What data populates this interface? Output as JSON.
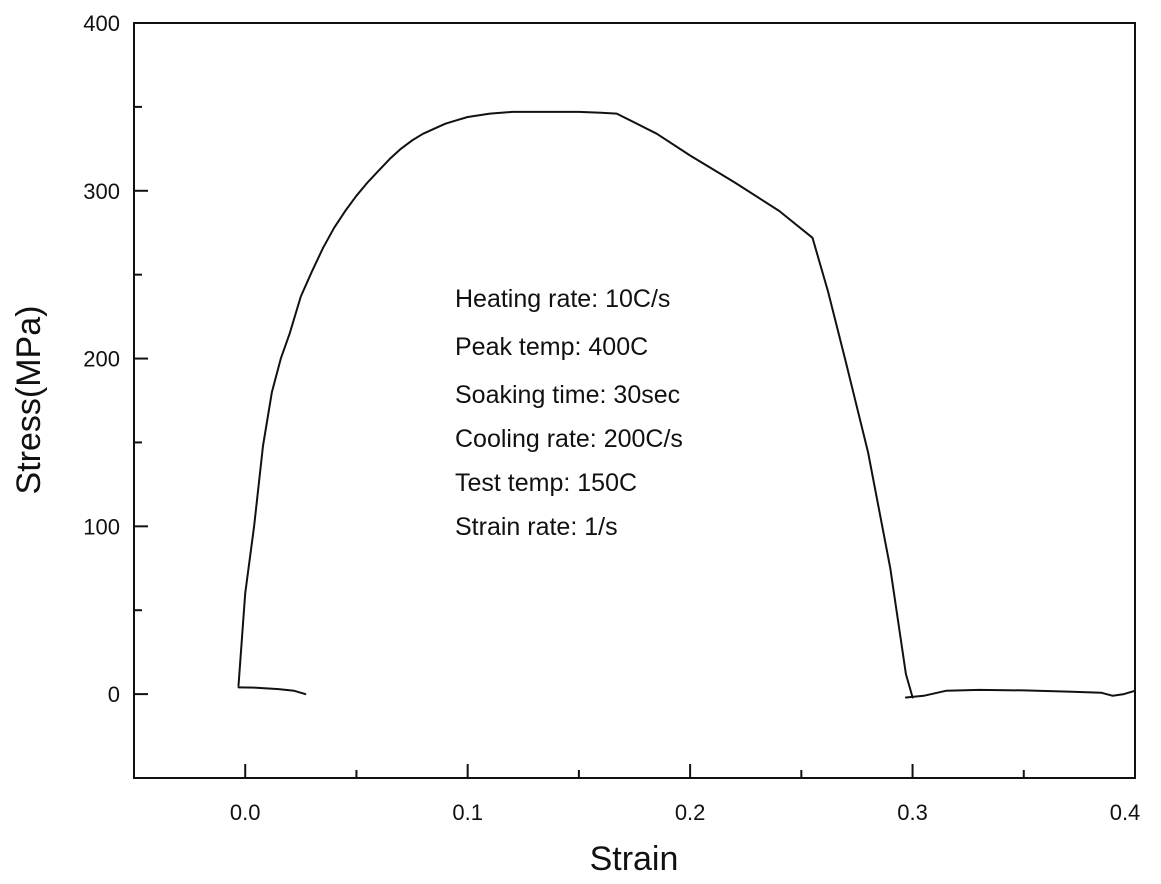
{
  "chart_data": {
    "type": "line",
    "title": "",
    "xlabel": "Strain",
    "ylabel": "Stress(MPa)",
    "xlim": [
      -0.05,
      0.4
    ],
    "ylim": [
      -50,
      400
    ],
    "x_major_ticks": [
      0.0,
      0.1,
      0.2,
      0.3,
      0.4
    ],
    "x_tick_labels": [
      "0.0",
      "0.1",
      "0.2",
      "0.3",
      "0.4"
    ],
    "x_minor_ticks": [
      -0.05,
      0.05,
      0.15,
      0.25,
      0.35
    ],
    "y_major_ticks": [
      0,
      100,
      200,
      300,
      400
    ],
    "y_tick_labels": [
      "0",
      "100",
      "200",
      "300",
      "400"
    ],
    "y_minor_ticks": [
      -50,
      50,
      150,
      250,
      350
    ],
    "grid": false,
    "legend": "none",
    "line_color": "#111111",
    "series": [
      {
        "x": [
          -0.003,
          0.0,
          0.004,
          0.008,
          0.012,
          0.016,
          0.02,
          0.025,
          0.03,
          0.035,
          0.04,
          0.045,
          0.05,
          0.055,
          0.06,
          0.065,
          0.07,
          0.075,
          0.08,
          0.085,
          0.09,
          0.095,
          0.1,
          0.11,
          0.12,
          0.13,
          0.14,
          0.15,
          0.16,
          0.167,
          0.185,
          0.2,
          0.22,
          0.24,
          0.255,
          0.262,
          0.27,
          0.28,
          0.29,
          0.297,
          0.3
        ],
        "y": [
          5,
          60,
          100,
          148,
          180,
          200,
          215,
          237,
          252,
          266,
          278,
          288,
          297,
          305,
          312,
          319,
          325,
          330,
          334,
          337,
          340,
          342,
          344,
          346,
          347,
          347,
          347,
          347,
          346.5,
          346,
          334,
          321,
          305,
          288,
          272,
          240,
          198,
          144,
          75,
          12,
          -2
        ]
      },
      {
        "x": [
          -0.003,
          0.005,
          0.015,
          0.022,
          0.027
        ],
        "y": [
          4,
          3.8,
          3,
          2,
          0
        ]
      },
      {
        "x": [
          0.297,
          0.305,
          0.315,
          0.33,
          0.35,
          0.37,
          0.385,
          0.39,
          0.395,
          0.4
        ],
        "y": [
          -2,
          -1,
          2,
          2.5,
          2.2,
          1.5,
          0.8,
          -1,
          0,
          2
        ]
      }
    ],
    "annotations": [
      "Heating rate: 10C/s",
      "Peak temp: 400C",
      "Soaking time: 30sec",
      "Cooling rate: 200C/s",
      "Test temp: 150C",
      "Strain rate: 1/s"
    ]
  }
}
